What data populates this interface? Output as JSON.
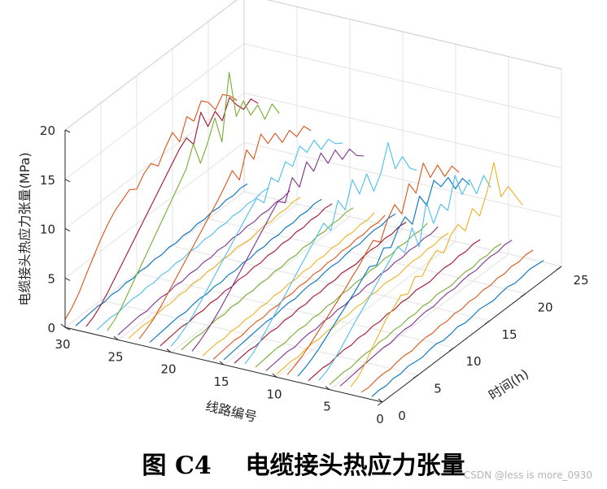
{
  "caption": "图 C4    电缆接头热应力张量",
  "watermark": "CSDN @less is more_0930",
  "chart_data": {
    "type": "3d-line",
    "title": "",
    "xlabel": "线路编号",
    "ylabel": "时间(h)",
    "zlabel": "电缆接头热应力张量(MPa)",
    "xlim": [
      0,
      30
    ],
    "ylim": [
      0,
      25
    ],
    "zlim": [
      0,
      20
    ],
    "xticks": [
      "0",
      "5",
      "10",
      "15",
      "20",
      "25",
      "30"
    ],
    "yticks": [
      "0",
      "5",
      "10",
      "15",
      "20",
      "25"
    ],
    "zticks": [
      "0",
      "5",
      "10",
      "15",
      "20"
    ],
    "grid": true,
    "colors": [
      "#0072BD",
      "#D95319",
      "#EDB120",
      "#7E2F8E",
      "#77AC30",
      "#4DBEEE",
      "#A2142F"
    ],
    "time_hours": [
      0,
      1,
      2,
      3,
      4,
      5,
      6,
      7,
      8,
      9,
      10,
      11,
      12,
      13,
      14,
      15,
      16,
      17,
      18,
      19,
      20,
      21,
      22,
      23,
      24
    ],
    "series": [
      {
        "line": 1,
        "values": [
          0.3,
          0.4,
          0.3,
          0.5,
          0.4,
          0.6,
          0.5,
          0.4,
          0.6,
          0.7,
          0.5,
          0.6,
          0.8,
          0.6,
          0.7,
          0.9,
          0.8,
          0.7,
          0.9,
          1.0,
          0.8,
          0.9,
          1.1,
          1.0,
          0.9
        ]
      },
      {
        "line": 2,
        "values": [
          0.5,
          0.4,
          0.6,
          0.7,
          0.6,
          0.8,
          0.9,
          0.8,
          1.0,
          1.1,
          1.0,
          1.2,
          1.1,
          1.3,
          1.2,
          1.4,
          1.3,
          1.5,
          1.4,
          1.6,
          1.5,
          1.7,
          1.6,
          1.8,
          1.7
        ]
      },
      {
        "line": 3,
        "values": [
          0.8,
          1.2,
          2.0,
          3.1,
          4.0,
          5.0,
          5.5,
          6.2,
          5.8,
          7.0,
          6.5,
          7.5,
          8.0,
          7.2,
          8.5,
          9.0,
          7.8,
          9.5,
          8.2,
          10.0,
          12.5,
          8.5,
          9.0,
          7.5,
          6.0
        ]
      },
      {
        "line": 4,
        "values": [
          0.6,
          0.7,
          0.8,
          0.9,
          1.0,
          1.1,
          1.2,
          1.1,
          1.3,
          1.4,
          1.3,
          1.5,
          1.6,
          1.5,
          1.7,
          1.8,
          1.7,
          1.9,
          2.0,
          1.9,
          2.1,
          2.2,
          2.1,
          2.3,
          2.2
        ]
      },
      {
        "line": 5,
        "values": [
          0.5,
          0.6,
          0.7,
          0.6,
          0.8,
          0.9,
          0.8,
          1.0,
          0.9,
          1.1,
          1.0,
          1.2,
          1.1,
          1.3,
          1.2,
          1.4,
          1.3,
          1.2,
          1.4,
          1.5,
          1.4,
          1.6,
          1.5,
          1.7,
          1.6
        ]
      },
      {
        "line": 6,
        "values": [
          0.7,
          1.0,
          1.5,
          2.2,
          3.0,
          3.8,
          4.5,
          5.2,
          6.0,
          6.8,
          7.5,
          8.2,
          7.0,
          9.0,
          6.5,
          10.5,
          7.8,
          9.2,
          8.0,
          11.0,
          8.5,
          9.5,
          7.5,
          8.8,
          7.0
        ]
      },
      {
        "line": 7,
        "values": [
          0.4,
          0.5,
          0.6,
          0.5,
          0.7,
          0.8,
          0.7,
          0.9,
          0.8,
          1.0,
          0.9,
          1.1,
          1.0,
          1.2,
          1.1,
          1.3,
          1.2,
          1.1,
          1.3,
          1.4,
          1.3,
          1.5,
          1.4,
          1.6,
          1.5
        ]
      },
      {
        "line": 8,
        "values": [
          0.6,
          0.9,
          1.3,
          1.8,
          2.4,
          3.0,
          3.6,
          4.2,
          4.8,
          5.5,
          6.2,
          5.8,
          7.0,
          6.5,
          7.8,
          8.5,
          7.2,
          9.5,
          8.0,
          10.0,
          8.8,
          9.2,
          7.5,
          8.0,
          6.8
        ]
      },
      {
        "line": 9,
        "values": [
          0.5,
          0.8,
          1.2,
          1.7,
          2.3,
          2.9,
          3.5,
          4.1,
          4.7,
          5.4,
          6.0,
          6.8,
          7.5,
          6.8,
          8.5,
          9.5,
          8.0,
          10.5,
          9.0,
          11.5,
          9.5,
          10.2,
          8.5,
          9.0,
          7.8
        ]
      },
      {
        "line": 10,
        "values": [
          0.3,
          0.4,
          0.5,
          0.4,
          0.6,
          0.7,
          0.6,
          0.8,
          0.7,
          0.9,
          0.8,
          1.0,
          0.9,
          1.1,
          1.0,
          1.2,
          1.1,
          1.0,
          1.2,
          1.3,
          1.2,
          1.4,
          1.3,
          1.5,
          1.4
        ]
      },
      {
        "line": 11,
        "values": [
          0.4,
          0.5,
          0.6,
          0.7,
          0.6,
          0.8,
          0.9,
          0.8,
          1.0,
          0.9,
          1.1,
          1.0,
          1.2,
          1.1,
          1.3,
          1.2,
          1.4,
          1.3,
          1.5,
          1.4,
          1.6,
          1.5,
          1.7,
          1.6,
          1.8
        ]
      },
      {
        "line": 12,
        "values": [
          0.5,
          0.6,
          0.7,
          0.8,
          0.7,
          0.9,
          1.0,
          0.9,
          1.1,
          1.0,
          1.2,
          1.1,
          1.3,
          1.2,
          1.4,
          1.3,
          1.5,
          1.4,
          1.6,
          1.5,
          1.7,
          1.6,
          1.8,
          1.7,
          1.9
        ]
      },
      {
        "line": 13,
        "values": [
          0.6,
          1.0,
          1.6,
          2.4,
          3.2,
          4.0,
          4.8,
          5.6,
          6.4,
          7.2,
          8.0,
          8.8,
          7.5,
          10.0,
          8.5,
          11.0,
          9.0,
          10.5,
          8.2,
          9.5,
          12.0,
          8.8,
          9.5,
          7.8,
          7.0
        ]
      },
      {
        "line": 14,
        "values": [
          0.4,
          0.5,
          0.6,
          0.5,
          0.7,
          0.8,
          0.7,
          0.9,
          0.8,
          1.0,
          0.9,
          1.1,
          1.0,
          1.2,
          1.1,
          1.3,
          1.2,
          1.1,
          1.3,
          1.4,
          1.3,
          1.5,
          1.4,
          1.6,
          1.5
        ]
      },
      {
        "line": 15,
        "values": [
          0.5,
          0.6,
          0.7,
          0.8,
          0.9,
          1.0,
          1.1,
          1.0,
          1.2,
          1.3,
          1.2,
          1.4,
          1.5,
          1.4,
          1.6,
          1.7,
          1.6,
          1.8,
          1.9,
          1.8,
          2.0,
          2.1,
          2.0,
          2.2,
          2.1
        ]
      },
      {
        "line": 16,
        "values": [
          0.3,
          0.4,
          0.5,
          0.6,
          0.5,
          0.7,
          0.8,
          0.7,
          0.9,
          0.8,
          1.0,
          0.9,
          1.1,
          1.0,
          1.2,
          1.1,
          1.3,
          1.2,
          1.4,
          1.3,
          1.5,
          1.4,
          1.6,
          1.5,
          1.7
        ]
      },
      {
        "line": 17,
        "values": [
          0.4,
          0.5,
          0.6,
          0.5,
          0.7,
          0.6,
          0.8,
          0.7,
          0.9,
          0.8,
          1.0,
          0.9,
          1.1,
          1.0,
          1.2,
          1.1,
          1.3,
          1.2,
          1.4,
          1.3,
          1.5,
          1.4,
          1.6,
          1.5,
          1.7
        ]
      },
      {
        "line": 18,
        "values": [
          0.6,
          1.0,
          1.5,
          2.1,
          2.8,
          3.6,
          4.4,
          5.2,
          6.0,
          6.8,
          7.6,
          8.4,
          9.2,
          8.5,
          10.5,
          9.0,
          11.0,
          9.5,
          10.8,
          9.2,
          10.0,
          8.5,
          9.0,
          7.8,
          7.2
        ]
      },
      {
        "line": 19,
        "values": [
          0.5,
          0.6,
          0.7,
          0.6,
          0.8,
          0.9,
          0.8,
          1.0,
          0.9,
          1.1,
          1.0,
          1.2,
          1.1,
          1.3,
          1.2,
          1.4,
          1.3,
          1.5,
          1.4,
          1.6,
          1.5,
          1.7,
          1.6,
          1.8,
          1.7
        ]
      },
      {
        "line": 20,
        "values": [
          0.6,
          0.9,
          1.4,
          2.0,
          2.7,
          3.5,
          4.3,
          5.1,
          5.9,
          6.7,
          7.5,
          8.3,
          9.0,
          8.0,
          10.0,
          9.0,
          10.5,
          9.5,
          11.0,
          9.8,
          10.5,
          9.0,
          9.5,
          8.5,
          8.0
        ]
      },
      {
        "line": 21,
        "values": [
          0.4,
          0.5,
          0.6,
          0.7,
          0.6,
          0.8,
          0.7,
          0.9,
          0.8,
          1.0,
          0.9,
          1.1,
          1.0,
          1.2,
          1.1,
          1.3,
          1.2,
          1.4,
          1.3,
          1.5,
          1.4,
          1.6,
          1.5,
          1.7,
          1.6
        ]
      },
      {
        "line": 22,
        "values": [
          0.5,
          0.6,
          0.7,
          0.8,
          0.9,
          0.8,
          1.0,
          1.1,
          1.0,
          1.2,
          1.1,
          1.3,
          1.2,
          1.4,
          1.3,
          1.5,
          1.4,
          1.6,
          1.5,
          1.7,
          1.6,
          1.8,
          1.7,
          1.9,
          1.8
        ]
      },
      {
        "line": 23,
        "values": [
          0.6,
          1.0,
          1.5,
          2.2,
          3.0,
          3.8,
          4.6,
          5.4,
          6.2,
          7.0,
          7.8,
          8.6,
          9.5,
          10.5,
          9.0,
          11.5,
          10.0,
          12.0,
          10.5,
          11.0,
          9.5,
          10.2,
          9.0,
          9.5,
          8.5
        ]
      },
      {
        "line": 24,
        "values": [
          0.4,
          0.5,
          0.6,
          0.5,
          0.7,
          0.8,
          0.7,
          0.9,
          0.8,
          1.0,
          0.9,
          1.1,
          1.0,
          1.2,
          1.1,
          1.3,
          1.2,
          1.1,
          1.3,
          1.4,
          1.3,
          1.5,
          1.4,
          1.6,
          1.5
        ]
      },
      {
        "line": 25,
        "values": [
          0.5,
          0.6,
          0.7,
          0.8,
          0.7,
          0.9,
          1.0,
          0.9,
          1.1,
          1.0,
          1.2,
          1.1,
          1.3,
          1.2,
          1.4,
          1.3,
          1.5,
          1.4,
          1.6,
          1.5,
          1.7,
          1.6,
          1.8,
          1.7,
          1.9
        ]
      },
      {
        "line": 26,
        "values": [
          0.7,
          1.2,
          2.0,
          3.0,
          4.0,
          5.0,
          6.0,
          7.0,
          8.0,
          9.0,
          10.0,
          11.0,
          13.0,
          10.5,
          12.0,
          14.0,
          11.0,
          17.5,
          12.5,
          13.5,
          11.5,
          12.0,
          10.0,
          11.0,
          9.5
        ]
      },
      {
        "line": 27,
        "values": [
          0.5,
          0.6,
          0.7,
          0.6,
          0.8,
          0.9,
          0.8,
          1.0,
          0.9,
          1.1,
          1.0,
          1.2,
          1.1,
          1.3,
          1.2,
          1.4,
          1.3,
          1.5,
          1.4,
          1.6,
          1.5,
          1.7,
          1.6,
          1.8,
          1.7
        ]
      },
      {
        "line": 28,
        "values": [
          0.6,
          1.0,
          1.6,
          2.4,
          3.3,
          4.2,
          5.1,
          6.0,
          6.9,
          7.8,
          8.7,
          9.6,
          10.5,
          11.4,
          12.0,
          10.8,
          13.5,
          11.5,
          12.5,
          11.0,
          12.8,
          11.5,
          10.5,
          11.0,
          10.0
        ]
      },
      {
        "line": 29,
        "values": [
          0.4,
          0.5,
          0.6,
          0.7,
          0.6,
          0.8,
          0.7,
          0.9,
          0.8,
          1.0,
          0.9,
          1.1,
          1.0,
          1.2,
          1.1,
          1.3,
          1.2,
          1.4,
          1.3,
          1.5,
          1.4,
          1.6,
          1.5,
          1.7,
          1.6
        ]
      },
      {
        "line": 30,
        "values": [
          0.8,
          1.5,
          2.5,
          3.8,
          5.0,
          6.2,
          7.2,
          8.0,
          8.5,
          9.0,
          8.5,
          9.5,
          10.0,
          9.2,
          10.5,
          11.5,
          10.0,
          12.0,
          11.0,
          12.5,
          11.8,
          10.5,
          11.5,
          10.8,
          9.8
        ]
      }
    ]
  }
}
